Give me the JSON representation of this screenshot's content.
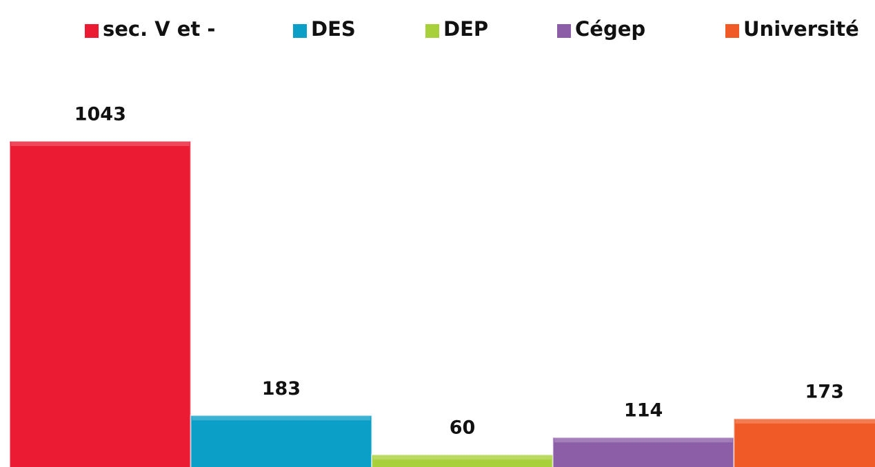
{
  "chart_data": {
    "type": "bar",
    "series": [
      {
        "name": "sec. V et -",
        "color": "#ec1b34",
        "values": [
          1043
        ]
      },
      {
        "name": "DES",
        "color": "#0b9fc7",
        "values": [
          183
        ]
      },
      {
        "name": "DEP",
        "color": "#a8d03a",
        "values": [
          60
        ]
      },
      {
        "name": "Cégep",
        "color": "#8d5ea8",
        "values": [
          114
        ]
      },
      {
        "name": "Université",
        "color": "#f05a27",
        "values": [
          173
        ]
      }
    ]
  }
}
